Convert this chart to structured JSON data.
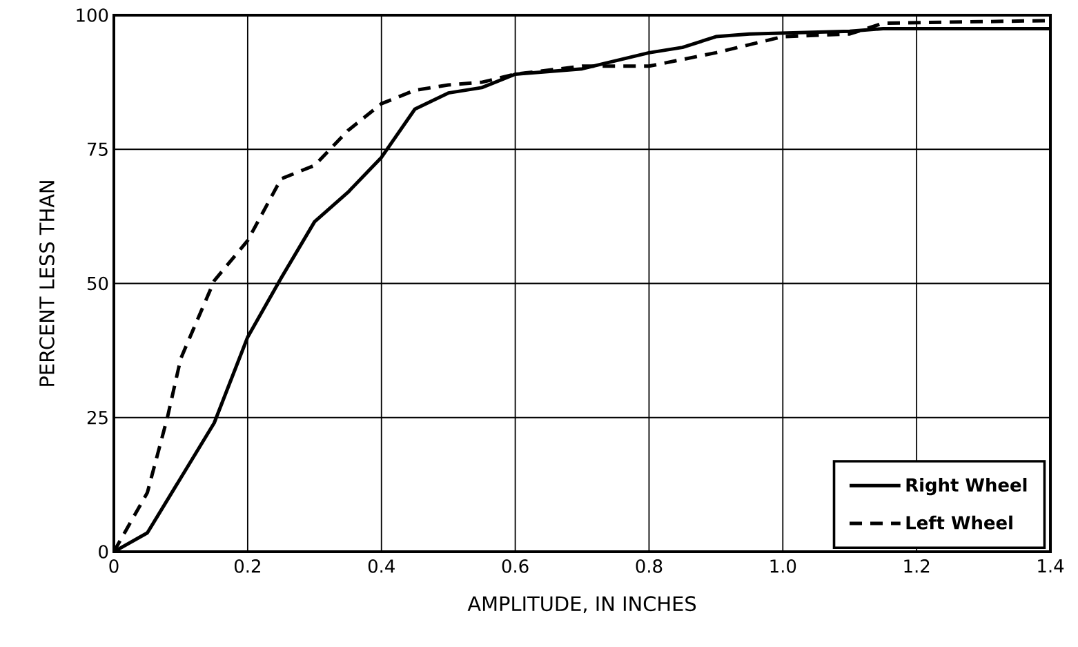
{
  "chart_data": {
    "type": "line",
    "xlabel": "AMPLITUDE, IN INCHES",
    "ylabel": "PERCENT LESS THAN",
    "xlim": [
      0,
      1.4
    ],
    "ylim": [
      0,
      100
    ],
    "xticks": [
      0,
      0.2,
      0.4,
      0.6,
      0.8,
      {
        "value": 1.0,
        "label": "1.0"
      },
      1.2,
      1.4
    ],
    "yticks": [
      0,
      25,
      50,
      75,
      100
    ],
    "grid": true,
    "legend": "bottom right",
    "marker": "none",
    "series": [
      {
        "name": "Right Wheel",
        "color": "#000000",
        "line_style": "solid",
        "x": [
          0,
          0.05,
          0.15,
          0.2,
          0.25,
          0.3,
          0.35,
          0.4,
          0.45,
          0.5,
          0.55,
          0.6,
          0.7,
          0.8,
          0.85,
          0.9,
          0.95,
          1.1,
          1.15,
          1.4
        ],
        "values": [
          0,
          3.5,
          24,
          40,
          51,
          61.5,
          67,
          73.5,
          82.5,
          85.5,
          86.5,
          89,
          90,
          93,
          94,
          96,
          96.5,
          97,
          97.5,
          97.5
        ]
      },
      {
        "name": "Left Wheel",
        "color": "#000000",
        "line_style": "dashed",
        "x": [
          0,
          0.05,
          0.08,
          0.1,
          0.15,
          0.2,
          0.25,
          0.3,
          0.35,
          0.4,
          0.45,
          0.5,
          0.55,
          0.6,
          0.7,
          0.8,
          0.9,
          1.0,
          1.1,
          1.15,
          1.4
        ],
        "values": [
          0,
          11,
          25,
          36,
          50.5,
          58,
          69.5,
          72,
          78.5,
          83.5,
          86,
          87,
          87.5,
          89,
          90.5,
          90.5,
          93,
          96,
          96.5,
          98.5,
          99
        ]
      }
    ]
  }
}
